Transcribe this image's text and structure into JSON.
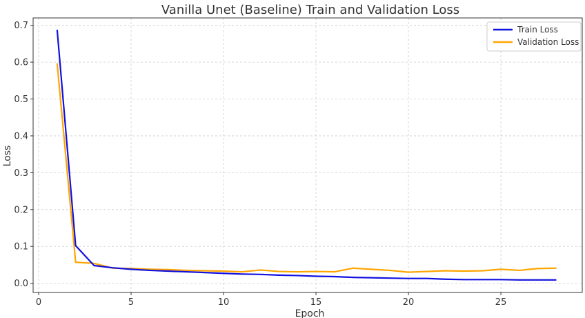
{
  "chart_data": {
    "type": "line",
    "title": "Vanilla Unet (Baseline) Train and Validation Loss",
    "xlabel": "Epoch",
    "ylabel": "Loss",
    "xlim": [
      -0.3,
      29.4
    ],
    "ylim": [
      -0.025,
      0.72
    ],
    "xticks": [
      0,
      5,
      10,
      15,
      20,
      25
    ],
    "yticks": [
      0.0,
      0.1,
      0.2,
      0.3,
      0.4,
      0.5,
      0.6,
      0.7
    ],
    "grid": true,
    "legend_position": "top-right",
    "x": [
      1,
      2,
      3,
      4,
      5,
      6,
      7,
      8,
      9,
      10,
      11,
      12,
      13,
      14,
      15,
      16,
      17,
      18,
      19,
      20,
      21,
      22,
      23,
      24,
      25,
      26,
      27,
      28
    ],
    "series": [
      {
        "name": "Train Loss",
        "color": "#1010e0",
        "values": [
          0.688,
          0.102,
          0.048,
          0.042,
          0.038,
          0.035,
          0.033,
          0.031,
          0.029,
          0.027,
          0.025,
          0.024,
          0.022,
          0.021,
          0.019,
          0.018,
          0.016,
          0.015,
          0.014,
          0.013,
          0.013,
          0.011,
          0.01,
          0.01,
          0.01,
          0.009,
          0.009,
          0.009
        ]
      },
      {
        "name": "Validation Loss",
        "color": "#ffa500",
        "values": [
          0.597,
          0.057,
          0.054,
          0.041,
          0.04,
          0.038,
          0.037,
          0.035,
          0.034,
          0.033,
          0.031,
          0.036,
          0.032,
          0.031,
          0.032,
          0.031,
          0.041,
          0.038,
          0.035,
          0.03,
          0.032,
          0.034,
          0.033,
          0.034,
          0.038,
          0.035,
          0.04,
          0.041
        ]
      }
    ]
  }
}
